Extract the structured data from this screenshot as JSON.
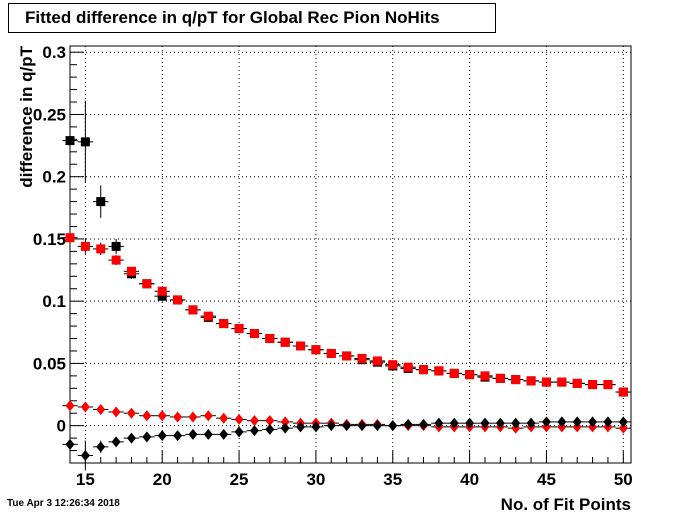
{
  "title": "Fitted difference in q/pT for Global Rec Pion NoHits",
  "timestamp": "Tue Apr  3 12:26:34 2018",
  "chart_data": {
    "type": "scatter",
    "title": "Fitted difference in q/pT for Global Rec Pion NoHits",
    "xlabel": "No. of Fit Points",
    "ylabel": "difference in q/pT",
    "xlim": [
      14,
      50.5
    ],
    "ylim": [
      -0.03,
      0.305
    ],
    "xticks": [
      15,
      20,
      25,
      30,
      35,
      40,
      45,
      50
    ],
    "yticks": [
      0,
      0.05,
      0.1,
      0.15,
      0.2,
      0.25,
      0.3
    ],
    "ytick_labels": [
      "0",
      "0.05",
      "0.1",
      "0.15",
      "0.2",
      "0.25",
      "0.3"
    ],
    "grid": true,
    "series": [
      {
        "marker": "square",
        "color": "#000000",
        "x": [
          14,
          15,
          16,
          17,
          18,
          19,
          20,
          21,
          22,
          23,
          24,
          25,
          26,
          27,
          28,
          29,
          30,
          31,
          32,
          33,
          34,
          35,
          36,
          37,
          38,
          39,
          40,
          41,
          42,
          43,
          44,
          45,
          46,
          47,
          48,
          49,
          50
        ],
        "y": [
          0.229,
          0.228,
          0.18,
          0.144,
          0.122,
          0.114,
          0.104,
          0.101,
          0.093,
          0.087,
          0.082,
          0.078,
          0.074,
          0.07,
          0.067,
          0.064,
          0.061,
          0.058,
          0.056,
          0.053,
          0.051,
          0.048,
          0.046,
          0.045,
          0.044,
          0.042,
          0.041,
          0.039,
          0.038,
          0.037,
          0.036,
          0.035,
          0.035,
          0.034,
          0.033,
          0.033,
          0.027
        ],
        "err": [
          0.045,
          0.033,
          0.013,
          0.006,
          0.004,
          0.003,
          0.003,
          0.002,
          0.002,
          0.002,
          0.002,
          0.002,
          0.002,
          0.002,
          0.002,
          0.002,
          0.002,
          0.002,
          0.002,
          0.002,
          0.002,
          0.002,
          0.002,
          0.002,
          0.002,
          0.002,
          0.002,
          0.002,
          0.002,
          0.002,
          0.002,
          0.002,
          0.002,
          0.002,
          0.002,
          0.002,
          0.002
        ]
      },
      {
        "marker": "square",
        "color": "#ff0000",
        "x": [
          14,
          15,
          16,
          17,
          18,
          19,
          20,
          21,
          22,
          23,
          24,
          25,
          26,
          27,
          28,
          29,
          30,
          31,
          32,
          33,
          34,
          35,
          36,
          37,
          38,
          39,
          40,
          41,
          42,
          43,
          44,
          45,
          46,
          47,
          48,
          49,
          50
        ],
        "y": [
          0.151,
          0.144,
          0.142,
          0.133,
          0.124,
          0.114,
          0.108,
          0.101,
          0.093,
          0.088,
          0.082,
          0.078,
          0.074,
          0.07,
          0.067,
          0.064,
          0.061,
          0.058,
          0.056,
          0.054,
          0.052,
          0.049,
          0.047,
          0.045,
          0.044,
          0.042,
          0.041,
          0.04,
          0.038,
          0.037,
          0.036,
          0.035,
          0.035,
          0.034,
          0.033,
          0.033,
          0.027
        ],
        "err": [
          0.01,
          0.006,
          0.005,
          0.004,
          0.003,
          0.003,
          0.002,
          0.002,
          0.002,
          0.002,
          0.002,
          0.002,
          0.002,
          0.002,
          0.002,
          0.002,
          0.002,
          0.002,
          0.002,
          0.002,
          0.002,
          0.002,
          0.002,
          0.002,
          0.002,
          0.002,
          0.002,
          0.002,
          0.002,
          0.002,
          0.002,
          0.002,
          0.002,
          0.002,
          0.002,
          0.002,
          0.002
        ]
      },
      {
        "marker": "diamond",
        "color": "#ff0000",
        "x": [
          14,
          15,
          16,
          17,
          18,
          19,
          20,
          21,
          22,
          23,
          24,
          25,
          26,
          27,
          28,
          29,
          30,
          31,
          32,
          33,
          34,
          35,
          36,
          37,
          38,
          39,
          40,
          41,
          42,
          43,
          44,
          45,
          46,
          47,
          48,
          49,
          50
        ],
        "y": [
          0.016,
          0.015,
          0.013,
          0.011,
          0.01,
          0.008,
          0.008,
          0.007,
          0.007,
          0.008,
          0.006,
          0.005,
          0.004,
          0.004,
          0.003,
          0.002,
          0.002,
          0.002,
          0.001,
          0.001,
          0.001,
          0.0,
          0.0,
          0.0,
          -0.001,
          -0.001,
          -0.001,
          -0.001,
          -0.001,
          -0.002,
          -0.001,
          -0.001,
          -0.001,
          -0.001,
          -0.001,
          -0.001,
          -0.002
        ],
        "err": [
          0.003,
          0.002,
          0.002,
          0.002,
          0.001,
          0.001,
          0.001,
          0.001,
          0.001,
          0.001,
          0.001,
          0.001,
          0.001,
          0.001,
          0.001,
          0.001,
          0.001,
          0.001,
          0.001,
          0.001,
          0.001,
          0.001,
          0.001,
          0.001,
          0.001,
          0.001,
          0.001,
          0.001,
          0.001,
          0.001,
          0.001,
          0.001,
          0.001,
          0.001,
          0.001,
          0.001,
          0.001
        ]
      },
      {
        "marker": "diamond",
        "color": "#000000",
        "x": [
          14,
          15,
          16,
          17,
          18,
          19,
          20,
          21,
          22,
          23,
          24,
          25,
          26,
          27,
          28,
          29,
          30,
          31,
          32,
          33,
          34,
          35,
          36,
          37,
          38,
          39,
          40,
          41,
          42,
          43,
          44,
          45,
          46,
          47,
          48,
          49,
          50
        ],
        "y": [
          -0.015,
          -0.024,
          -0.017,
          -0.013,
          -0.01,
          -0.009,
          -0.008,
          -0.008,
          -0.007,
          -0.007,
          -0.007,
          -0.005,
          -0.004,
          -0.003,
          -0.002,
          -0.001,
          -0.001,
          0.0,
          0.0,
          0.0,
          0.0,
          0.0,
          0.001,
          0.001,
          0.002,
          0.002,
          0.002,
          0.002,
          0.002,
          0.002,
          0.002,
          0.003,
          0.003,
          0.003,
          0.003,
          0.003,
          0.003
        ],
        "err": [
          0.01,
          0.012,
          0.005,
          0.003,
          0.002,
          0.002,
          0.001,
          0.001,
          0.001,
          0.001,
          0.001,
          0.001,
          0.001,
          0.001,
          0.001,
          0.001,
          0.001,
          0.001,
          0.001,
          0.001,
          0.001,
          0.001,
          0.001,
          0.001,
          0.001,
          0.001,
          0.001,
          0.001,
          0.001,
          0.001,
          0.001,
          0.001,
          0.001,
          0.001,
          0.001,
          0.001,
          0.001
        ]
      }
    ]
  }
}
